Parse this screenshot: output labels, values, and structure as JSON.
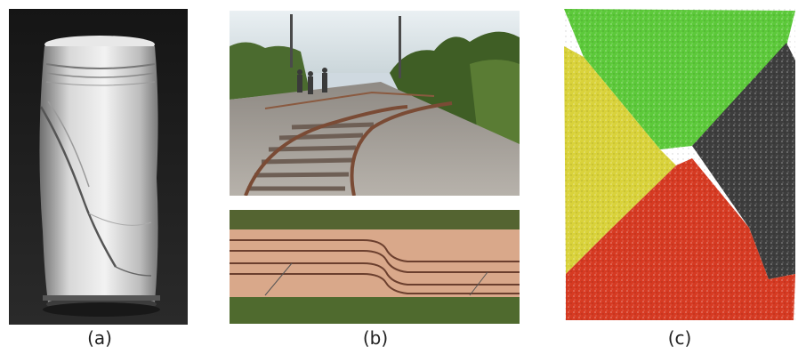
{
  "figure": {
    "captions": {
      "a": "(a)",
      "b": "(b)",
      "c": "(c)"
    },
    "colors": {
      "region_green": "#5cc93a",
      "region_yellow": "#d9d23a",
      "region_red": "#d63a22",
      "region_dark": "#3d3d3d"
    }
  }
}
